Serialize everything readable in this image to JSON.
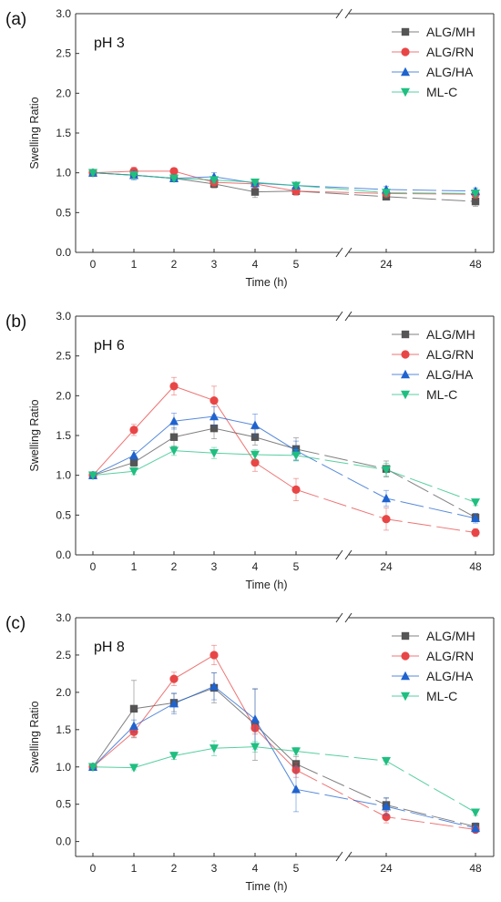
{
  "chart_data": [
    {
      "type": "line",
      "panel_label": "(a)",
      "annotation": "pH 3",
      "xlabel": "Time (h)",
      "ylabel": "Swelling Ratio",
      "x": [
        "0",
        "1",
        "2",
        "3",
        "4",
        "5",
        "24",
        "48"
      ],
      "ylim": [
        0,
        3
      ],
      "yticks": [
        "0.0",
        "0.5",
        "1.0",
        "1.5",
        "2.0",
        "2.5",
        "3.0"
      ],
      "legend_position": "top-right",
      "series": [
        {
          "name": "ALG/MH",
          "color": "#555555",
          "marker": "square",
          "values": [
            1.0,
            0.97,
            0.93,
            0.86,
            0.76,
            0.77,
            0.7,
            0.64
          ],
          "errors": [
            0.03,
            0.04,
            0.03,
            0.05,
            0.07,
            0.05,
            0.04,
            0.06
          ]
        },
        {
          "name": "ALG/RN",
          "color": "#e84646",
          "marker": "circle",
          "values": [
            1.0,
            1.02,
            1.02,
            0.88,
            0.86,
            0.77,
            0.74,
            0.73
          ],
          "errors": [
            0.03,
            0.05,
            0.04,
            0.05,
            0.05,
            0.05,
            0.04,
            0.05
          ]
        },
        {
          "name": "ALG/HA",
          "color": "#1f63cf",
          "marker": "triangle-up",
          "values": [
            1.0,
            0.97,
            0.93,
            0.95,
            0.87,
            0.84,
            0.79,
            0.77
          ],
          "errors": [
            0.03,
            0.06,
            0.03,
            0.05,
            0.04,
            0.03,
            0.04,
            0.04
          ]
        },
        {
          "name": "ML-C",
          "color": "#1fbf80",
          "marker": "triangle-down",
          "values": [
            1.0,
            0.97,
            0.93,
            0.91,
            0.88,
            0.84,
            0.75,
            0.74
          ],
          "errors": [
            0.03,
            0.04,
            0.03,
            0.04,
            0.04,
            0.04,
            0.04,
            0.04
          ]
        }
      ]
    },
    {
      "type": "line",
      "panel_label": "(b)",
      "annotation": "pH 6",
      "xlabel": "Time (h)",
      "ylabel": "Swelling Ratio",
      "x": [
        "0",
        "1",
        "2",
        "3",
        "4",
        "5",
        "24",
        "48"
      ],
      "ylim": [
        0,
        3
      ],
      "yticks": [
        "0.0",
        "0.5",
        "1.0",
        "1.5",
        "2.0",
        "2.5",
        "3.0"
      ],
      "legend_position": "top-right",
      "series": [
        {
          "name": "ALG/MH",
          "color": "#555555",
          "marker": "square",
          "values": [
            1.0,
            1.16,
            1.48,
            1.59,
            1.48,
            1.33,
            1.08,
            0.47
          ],
          "errors": [
            0.02,
            0.05,
            0.12,
            0.13,
            0.1,
            0.14,
            0.1,
            0.05
          ]
        },
        {
          "name": "ALG/RN",
          "color": "#e84646",
          "marker": "circle",
          "values": [
            1.0,
            1.57,
            2.12,
            1.94,
            1.16,
            0.82,
            0.45,
            0.28
          ],
          "errors": [
            0.02,
            0.07,
            0.11,
            0.18,
            0.11,
            0.14,
            0.14,
            0.05
          ]
        },
        {
          "name": "ALG/HA",
          "color": "#1f63cf",
          "marker": "triangle-up",
          "values": [
            1.0,
            1.25,
            1.68,
            1.74,
            1.63,
            1.31,
            0.71,
            0.46
          ],
          "errors": [
            0.02,
            0.06,
            0.1,
            0.12,
            0.14,
            0.12,
            0.1,
            0.06
          ]
        },
        {
          "name": "ML-C",
          "color": "#1fbf80",
          "marker": "triangle-down",
          "values": [
            1.0,
            1.05,
            1.31,
            1.28,
            1.26,
            1.25,
            1.07,
            0.66
          ],
          "errors": [
            0.02,
            0.04,
            0.06,
            0.07,
            0.06,
            0.07,
            0.08,
            0.04
          ]
        }
      ]
    },
    {
      "type": "line",
      "panel_label": "(c)",
      "annotation": "pH 8",
      "xlabel": "Time (h)",
      "ylabel": "Swelling Ratio",
      "x": [
        "0",
        "1",
        "2",
        "3",
        "4",
        "5",
        "24",
        "48"
      ],
      "ylim": [
        -0.2,
        3
      ],
      "yticks": [
        "0.0",
        "0.5",
        "1.0",
        "1.5",
        "2.0",
        "2.5",
        "3.0"
      ],
      "legend_position": "top-right",
      "series": [
        {
          "name": "ALG/MH",
          "color": "#555555",
          "marker": "square",
          "values": [
            1.0,
            1.78,
            1.86,
            2.06,
            1.57,
            1.04,
            0.49,
            0.2
          ],
          "errors": [
            0.02,
            0.38,
            0.12,
            0.2,
            0.48,
            0.1,
            0.09,
            0.05
          ]
        },
        {
          "name": "ALG/RN",
          "color": "#e84646",
          "marker": "circle",
          "values": [
            1.0,
            1.47,
            2.18,
            2.5,
            1.52,
            0.96,
            0.33,
            0.16
          ],
          "errors": [
            0.02,
            0.08,
            0.09,
            0.13,
            0.08,
            0.1,
            0.08,
            0.04
          ]
        },
        {
          "name": "ALG/HA",
          "color": "#1f63cf",
          "marker": "triangle-up",
          "values": [
            1.0,
            1.55,
            1.85,
            2.08,
            1.64,
            0.7,
            0.47,
            0.18
          ],
          "errors": [
            0.02,
            0.08,
            0.14,
            0.18,
            0.4,
            0.3,
            0.12,
            0.06
          ]
        },
        {
          "name": "ML-C",
          "color": "#1fbf80",
          "marker": "triangle-down",
          "values": [
            1.0,
            0.99,
            1.15,
            1.25,
            1.27,
            1.21,
            1.08,
            0.39
          ],
          "errors": [
            0.02,
            0.03,
            0.05,
            0.1,
            0.07,
            0.05,
            0.05,
            0.04
          ]
        }
      ]
    }
  ]
}
